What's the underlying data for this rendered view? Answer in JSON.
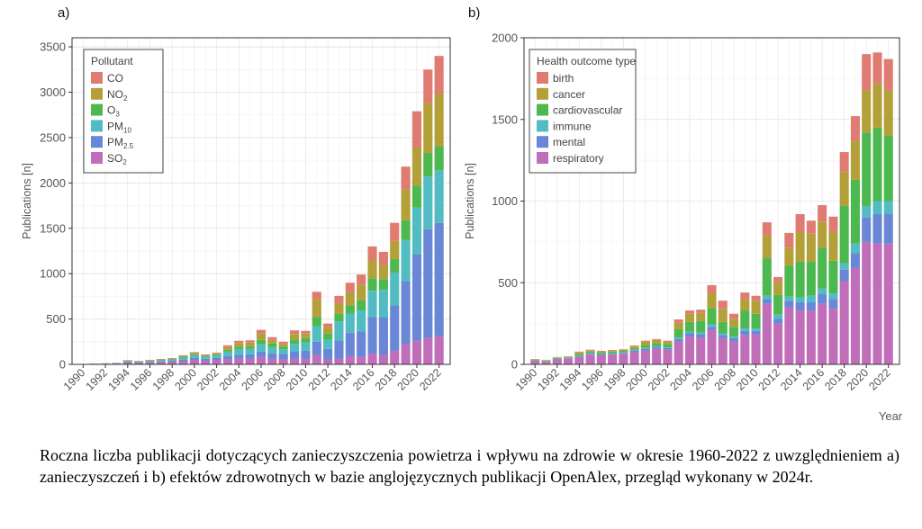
{
  "figure": {
    "panel_a_label": "a)",
    "panel_b_label": "b)",
    "caption": "Roczna liczba publikacji dotyczących zanieczyszczenia powietrza i wpływu na zdrowie w okresie 1960-2022 z uwzględnieniem a) zanieczyszczeń i b) efektów zdrowotnych w bazie anglojęzycznych publikacji OpenAlex, przegląd wykonany w 2024r."
  },
  "chart_data": [
    {
      "type": "bar",
      "stacked": true,
      "panel": "a)",
      "xlabel": "",
      "ylabel": "Publications [n]",
      "ylim": [
        0,
        3600
      ],
      "yticks": [
        0,
        500,
        1000,
        1500,
        2000,
        2500,
        3000,
        3500
      ],
      "xtick_labels": [
        "1990",
        "1992",
        "1994",
        "1996",
        "1998",
        "2000",
        "2002",
        "2004",
        "2006",
        "2008",
        "2010",
        "2012",
        "2014",
        "2016",
        "2018",
        "2020",
        "2022"
      ],
      "grid": true,
      "legend_title": "Pollutant",
      "legend_placement": "top-left",
      "legend_order": [
        "CO",
        "NO2",
        "O3",
        "PM10",
        "PM2.5",
        "SO2"
      ],
      "legend_labels": [
        {
          "base": "CO",
          "sub": ""
        },
        {
          "base": "NO",
          "sub": "2"
        },
        {
          "base": "O",
          "sub": "3"
        },
        {
          "base": "PM",
          "sub": "10"
        },
        {
          "base": "PM",
          "sub": "2.5"
        },
        {
          "base": "SO",
          "sub": "2"
        }
      ],
      "categories": [
        "1990",
        "1991",
        "1992",
        "1993",
        "1994",
        "1995",
        "1996",
        "1997",
        "1998",
        "1999",
        "2000",
        "2001",
        "2002",
        "2003",
        "2004",
        "2005",
        "2006",
        "2007",
        "2008",
        "2009",
        "2010",
        "2011",
        "2012",
        "2013",
        "2014",
        "2015",
        "2016",
        "2017",
        "2018",
        "2019",
        "2020",
        "2021",
        "2022"
      ],
      "series": [
        {
          "name": "SO2",
          "color": "#c06dba",
          "values": [
            2,
            4,
            5,
            8,
            20,
            15,
            20,
            25,
            30,
            35,
            50,
            40,
            45,
            55,
            65,
            60,
            80,
            60,
            55,
            65,
            60,
            100,
            50,
            65,
            90,
            85,
            120,
            100,
            150,
            220,
            260,
            290,
            310
          ]
        },
        {
          "name": "PM2.5",
          "color": "#6a86d6",
          "values": [
            1,
            1,
            2,
            3,
            5,
            5,
            6,
            8,
            10,
            15,
            20,
            20,
            25,
            35,
            40,
            50,
            60,
            60,
            60,
            80,
            90,
            150,
            120,
            200,
            260,
            280,
            400,
            420,
            500,
            700,
            950,
            1200,
            1250
          ]
        },
        {
          "name": "PM10",
          "color": "#52bcc3",
          "values": [
            2,
            2,
            3,
            4,
            8,
            8,
            10,
            12,
            15,
            25,
            30,
            25,
            30,
            50,
            60,
            60,
            80,
            70,
            50,
            80,
            90,
            170,
            100,
            210,
            210,
            230,
            290,
            300,
            360,
            450,
            520,
            580,
            580
          ]
        },
        {
          "name": "O3",
          "color": "#4db84f",
          "values": [
            0,
            0,
            1,
            1,
            5,
            3,
            4,
            5,
            5,
            10,
            12,
            10,
            10,
            20,
            30,
            30,
            50,
            40,
            30,
            50,
            50,
            100,
            70,
            80,
            90,
            110,
            140,
            120,
            150,
            220,
            240,
            260,
            260
          ]
        },
        {
          "name": "NO2",
          "color": "#b3a038",
          "values": [
            0,
            1,
            1,
            1,
            5,
            4,
            5,
            5,
            5,
            10,
            15,
            10,
            12,
            30,
            40,
            40,
            70,
            40,
            30,
            60,
            50,
            200,
            70,
            120,
            150,
            170,
            200,
            160,
            200,
            340,
            420,
            550,
            580
          ]
        },
        {
          "name": "CO",
          "color": "#e07b72",
          "values": [
            0,
            1,
            1,
            1,
            5,
            4,
            5,
            5,
            5,
            5,
            8,
            5,
            8,
            20,
            25,
            25,
            40,
            30,
            25,
            40,
            30,
            80,
            40,
            80,
            100,
            115,
            150,
            140,
            200,
            250,
            400,
            370,
            420
          ]
        }
      ]
    },
    {
      "type": "bar",
      "stacked": true,
      "panel": "b)",
      "xlabel": "Year",
      "ylabel": "Publications [n]",
      "ylim": [
        0,
        2000
      ],
      "yticks": [
        0,
        500,
        1000,
        1500,
        2000
      ],
      "xtick_labels": [
        "1990",
        "1992",
        "1994",
        "1996",
        "1998",
        "2000",
        "2002",
        "2004",
        "2006",
        "2008",
        "2010",
        "2012",
        "2014",
        "2016",
        "2018",
        "2020",
        "2022"
      ],
      "grid": true,
      "legend_title": "Health outcome type",
      "legend_placement": "top-left",
      "legend_order": [
        "birth",
        "cancer",
        "cardiovascular",
        "immune",
        "mental",
        "respiratory"
      ],
      "categories": [
        "1990",
        "1991",
        "1992",
        "1993",
        "1994",
        "1995",
        "1996",
        "1997",
        "1998",
        "1999",
        "2000",
        "2001",
        "2002",
        "2003",
        "2004",
        "2005",
        "2006",
        "2007",
        "2008",
        "2009",
        "2010",
        "2011",
        "2012",
        "2013",
        "2014",
        "2015",
        "2016",
        "2017",
        "2018",
        "2019",
        "2020",
        "2021",
        "2022"
      ],
      "series": [
        {
          "name": "respiratory",
          "color": "#c06dba",
          "values": [
            20,
            15,
            30,
            35,
            45,
            60,
            55,
            60,
            65,
            80,
            85,
            95,
            90,
            140,
            170,
            165,
            210,
            160,
            140,
            180,
            185,
            370,
            250,
            350,
            330,
            330,
            370,
            340,
            510,
            590,
            750,
            740,
            740
          ]
        },
        {
          "name": "mental",
          "color": "#6a86d6",
          "values": [
            2,
            2,
            3,
            3,
            5,
            5,
            5,
            5,
            5,
            5,
            10,
            10,
            10,
            15,
            20,
            20,
            20,
            20,
            20,
            25,
            20,
            30,
            30,
            40,
            50,
            50,
            60,
            60,
            70,
            90,
            150,
            180,
            180
          ]
        },
        {
          "name": "immune",
          "color": "#52bcc3",
          "values": [
            1,
            1,
            2,
            2,
            3,
            3,
            3,
            3,
            3,
            5,
            5,
            5,
            5,
            10,
            10,
            10,
            15,
            10,
            10,
            15,
            15,
            20,
            25,
            25,
            30,
            40,
            35,
            35,
            40,
            60,
            70,
            80,
            80
          ]
        },
        {
          "name": "cardiovascular",
          "color": "#4db84f",
          "values": [
            5,
            5,
            5,
            5,
            10,
            10,
            10,
            10,
            10,
            10,
            20,
            20,
            20,
            50,
            60,
            70,
            100,
            70,
            60,
            110,
            90,
            230,
            120,
            190,
            220,
            210,
            250,
            200,
            350,
            390,
            450,
            450,
            400
          ]
        },
        {
          "name": "cancer",
          "color": "#b3a038",
          "values": [
            3,
            3,
            3,
            3,
            10,
            8,
            7,
            7,
            7,
            10,
            20,
            20,
            15,
            40,
            50,
            50,
            90,
            80,
            50,
            70,
            80,
            140,
            80,
            110,
            180,
            170,
            160,
            180,
            210,
            240,
            260,
            270,
            280
          ]
        },
        {
          "name": "birth",
          "color": "#e07b72",
          "values": [
            2,
            2,
            2,
            2,
            5,
            4,
            3,
            3,
            3,
            5,
            5,
            5,
            5,
            20,
            20,
            20,
            50,
            50,
            30,
            40,
            30,
            80,
            30,
            90,
            110,
            80,
            100,
            90,
            120,
            150,
            220,
            190,
            190
          ]
        }
      ]
    }
  ]
}
